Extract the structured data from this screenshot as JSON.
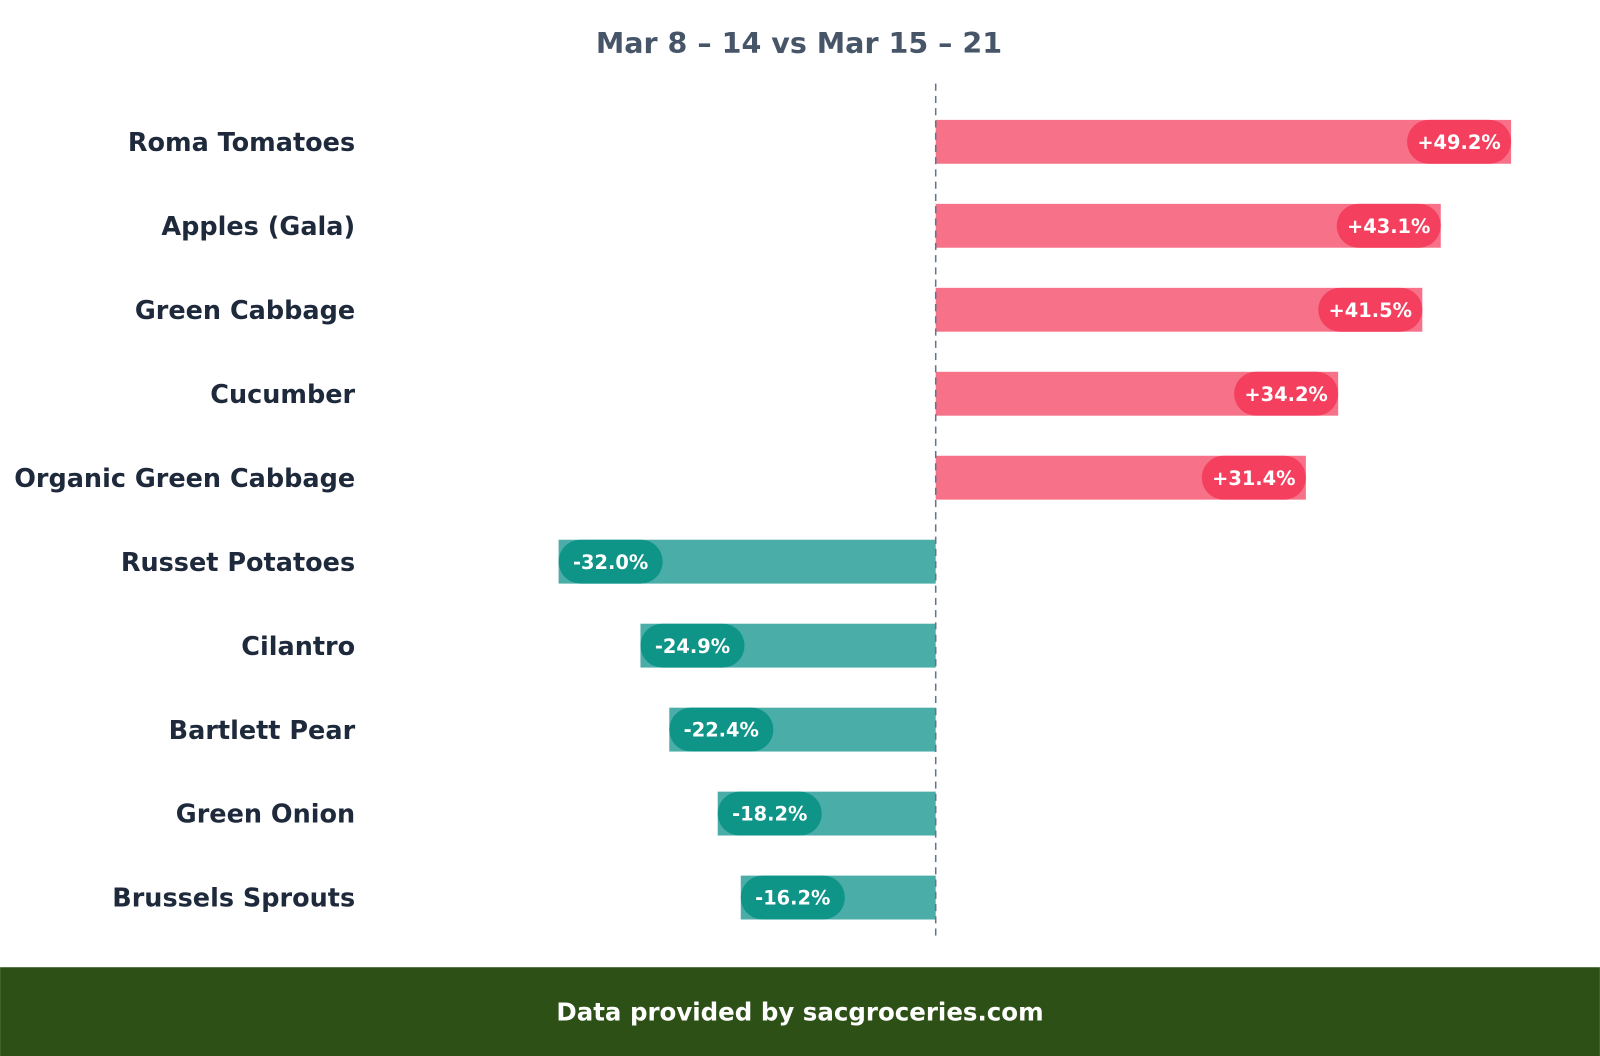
{
  "chart_data": {
    "type": "bar",
    "orientation": "horizontal",
    "title": "Mar 8 – 14 vs Mar 15 – 21",
    "categories": [
      "Roma Tomatoes",
      "Apples (Gala)",
      "Green Cabbage",
      "Cucumber",
      "Organic Green Cabbage",
      "Russet Potatoes",
      "Cilantro",
      "Bartlett Pear",
      "Green Onion",
      "Brussels Sprouts"
    ],
    "values": [
      49.2,
      43.1,
      41.5,
      34.2,
      31.4,
      -32.0,
      -24.9,
      -22.4,
      -18.2,
      -16.2
    ],
    "labels": [
      "+49.2%",
      "+43.1%",
      "+41.5%",
      "+34.2%",
      "+31.4%",
      "-32.0%",
      "-24.9%",
      "-22.4%",
      "-18.2%",
      "-16.2%"
    ],
    "unit": "%",
    "zero_line": "dashed",
    "grid": false,
    "colors": {
      "positive_bar": "#f77189",
      "positive_pill": "#f43f5e",
      "negative_bar": "#4aada8",
      "negative_pill": "#0f9488",
      "title": "#475569",
      "category": "#1e293b",
      "zero_line": "#64748b"
    }
  },
  "footer": {
    "text": "Data provided by sacgroceries.com",
    "background": "#2d5016"
  }
}
